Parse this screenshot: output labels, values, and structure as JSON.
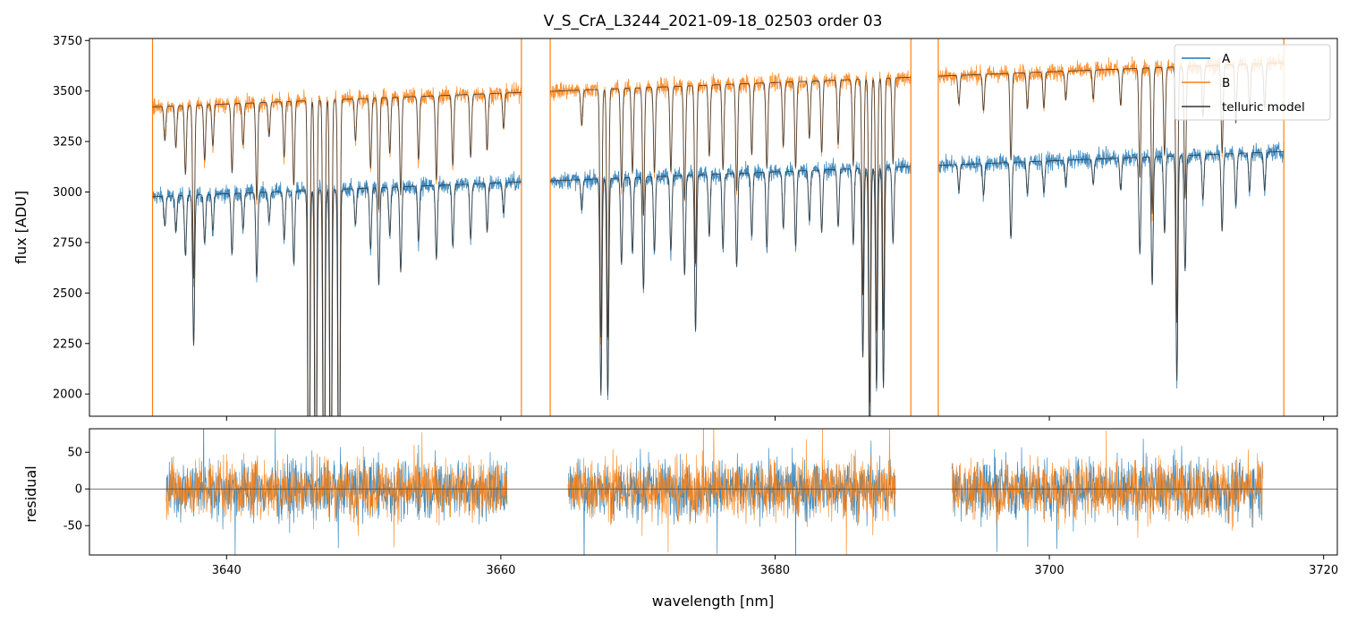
{
  "figure": {
    "title": "V_S_CrA_L3244_2021-09-18_02503  order 03"
  },
  "chart_data": [
    {
      "panel": "top",
      "type": "line",
      "title": "V_S_CrA_L3244_2021-09-18_02503  order 03",
      "xlabel": "",
      "ylabel": "flux [ADU]",
      "xlim": [
        3630,
        3721
      ],
      "ylim": [
        1890,
        3760
      ],
      "yticks": [
        2000,
        2250,
        2500,
        2750,
        3000,
        3250,
        3500,
        3750
      ],
      "xticks": [
        3640,
        3660,
        3680,
        3700,
        3720
      ],
      "grid": false,
      "legend": {
        "placement": "top-right",
        "entries": [
          "A",
          "B",
          "telluric model"
        ]
      },
      "segments": [
        [
          3634.6,
          3661.5
        ],
        [
          3663.6,
          3689.9
        ],
        [
          3691.9,
          3717.1
        ]
      ],
      "series": [
        {
          "name": "A",
          "color": "#1f77b4",
          "baseline_start": 2975,
          "baseline_end": 3200,
          "noise": 30
        },
        {
          "name": "B",
          "color": "#ff7f0e",
          "baseline_start": 3420,
          "baseline_end": 3640,
          "noise": 30
        },
        {
          "name": "telluric model",
          "color": "#333333"
        }
      ],
      "absorption_lines": [
        [
          3635.5,
          0.05
        ],
        [
          3636.3,
          0.06
        ],
        [
          3637.0,
          0.1
        ],
        [
          3637.6,
          0.25
        ],
        [
          3638.4,
          0.08
        ],
        [
          3639.0,
          0.06
        ],
        [
          3640.4,
          0.1
        ],
        [
          3641.2,
          0.06
        ],
        [
          3642.2,
          0.14
        ],
        [
          3643.1,
          0.05
        ],
        [
          3644.2,
          0.08
        ],
        [
          3644.9,
          0.12
        ],
        [
          3646.0,
          0.7
        ],
        [
          3646.5,
          0.7
        ],
        [
          3647.1,
          0.7
        ],
        [
          3647.6,
          0.7
        ],
        [
          3648.2,
          0.7
        ],
        [
          3649.4,
          0.06
        ],
        [
          3650.5,
          0.1
        ],
        [
          3651.1,
          0.16
        ],
        [
          3651.9,
          0.08
        ],
        [
          3652.7,
          0.14
        ],
        [
          3654.0,
          0.09
        ],
        [
          3655.3,
          0.12
        ],
        [
          3656.5,
          0.1
        ],
        [
          3657.8,
          0.09
        ],
        [
          3659.0,
          0.08
        ],
        [
          3660.2,
          0.05
        ],
        [
          3665.9,
          0.05
        ],
        [
          3667.3,
          0.35
        ],
        [
          3667.8,
          0.35
        ],
        [
          3668.8,
          0.14
        ],
        [
          3669.6,
          0.12
        ],
        [
          3670.4,
          0.18
        ],
        [
          3671.2,
          0.12
        ],
        [
          3672.4,
          0.12
        ],
        [
          3673.4,
          0.16
        ],
        [
          3674.2,
          0.25
        ],
        [
          3675.2,
          0.1
        ],
        [
          3676.2,
          0.12
        ],
        [
          3677.2,
          0.15
        ],
        [
          3678.3,
          0.1
        ],
        [
          3679.4,
          0.12
        ],
        [
          3680.6,
          0.09
        ],
        [
          3681.5,
          0.12
        ],
        [
          3682.5,
          0.08
        ],
        [
          3683.4,
          0.1
        ],
        [
          3684.6,
          0.09
        ],
        [
          3685.7,
          0.12
        ],
        [
          3686.4,
          0.3
        ],
        [
          3686.9,
          0.45
        ],
        [
          3687.4,
          0.35
        ],
        [
          3687.9,
          0.35
        ],
        [
          3688.6,
          0.12
        ],
        [
          3693.4,
          0.04
        ],
        [
          3695.2,
          0.05
        ],
        [
          3697.2,
          0.12
        ],
        [
          3698.4,
          0.05
        ],
        [
          3699.6,
          0.05
        ],
        [
          3701.2,
          0.04
        ],
        [
          3703.2,
          0.04
        ],
        [
          3705.2,
          0.05
        ],
        [
          3706.6,
          0.15
        ],
        [
          3707.5,
          0.2
        ],
        [
          3708.4,
          0.12
        ],
        [
          3709.3,
          0.35
        ],
        [
          3709.9,
          0.18
        ],
        [
          3711.2,
          0.07
        ],
        [
          3712.6,
          0.12
        ],
        [
          3713.6,
          0.08
        ],
        [
          3714.6,
          0.06
        ],
        [
          3715.7,
          0.06
        ]
      ]
    },
    {
      "panel": "bottom",
      "type": "line",
      "xlabel": "wavelength [nm]",
      "ylabel": "residual",
      "xlim": [
        3630,
        3721
      ],
      "ylim": [
        -90,
        82
      ],
      "yticks": [
        -50,
        0,
        50
      ],
      "xticks": [
        3640,
        3660,
        3680,
        3700,
        3720
      ],
      "grid": false,
      "segments": [
        [
          3635.6,
          3660.5
        ],
        [
          3664.9,
          3688.8
        ],
        [
          3692.9,
          3715.6
        ]
      ],
      "series": [
        {
          "name": "A",
          "color": "#1f77b4",
          "noise": 28
        },
        {
          "name": "B",
          "color": "#ff7f0e",
          "noise": 28
        }
      ],
      "zero_line": 0
    }
  ]
}
